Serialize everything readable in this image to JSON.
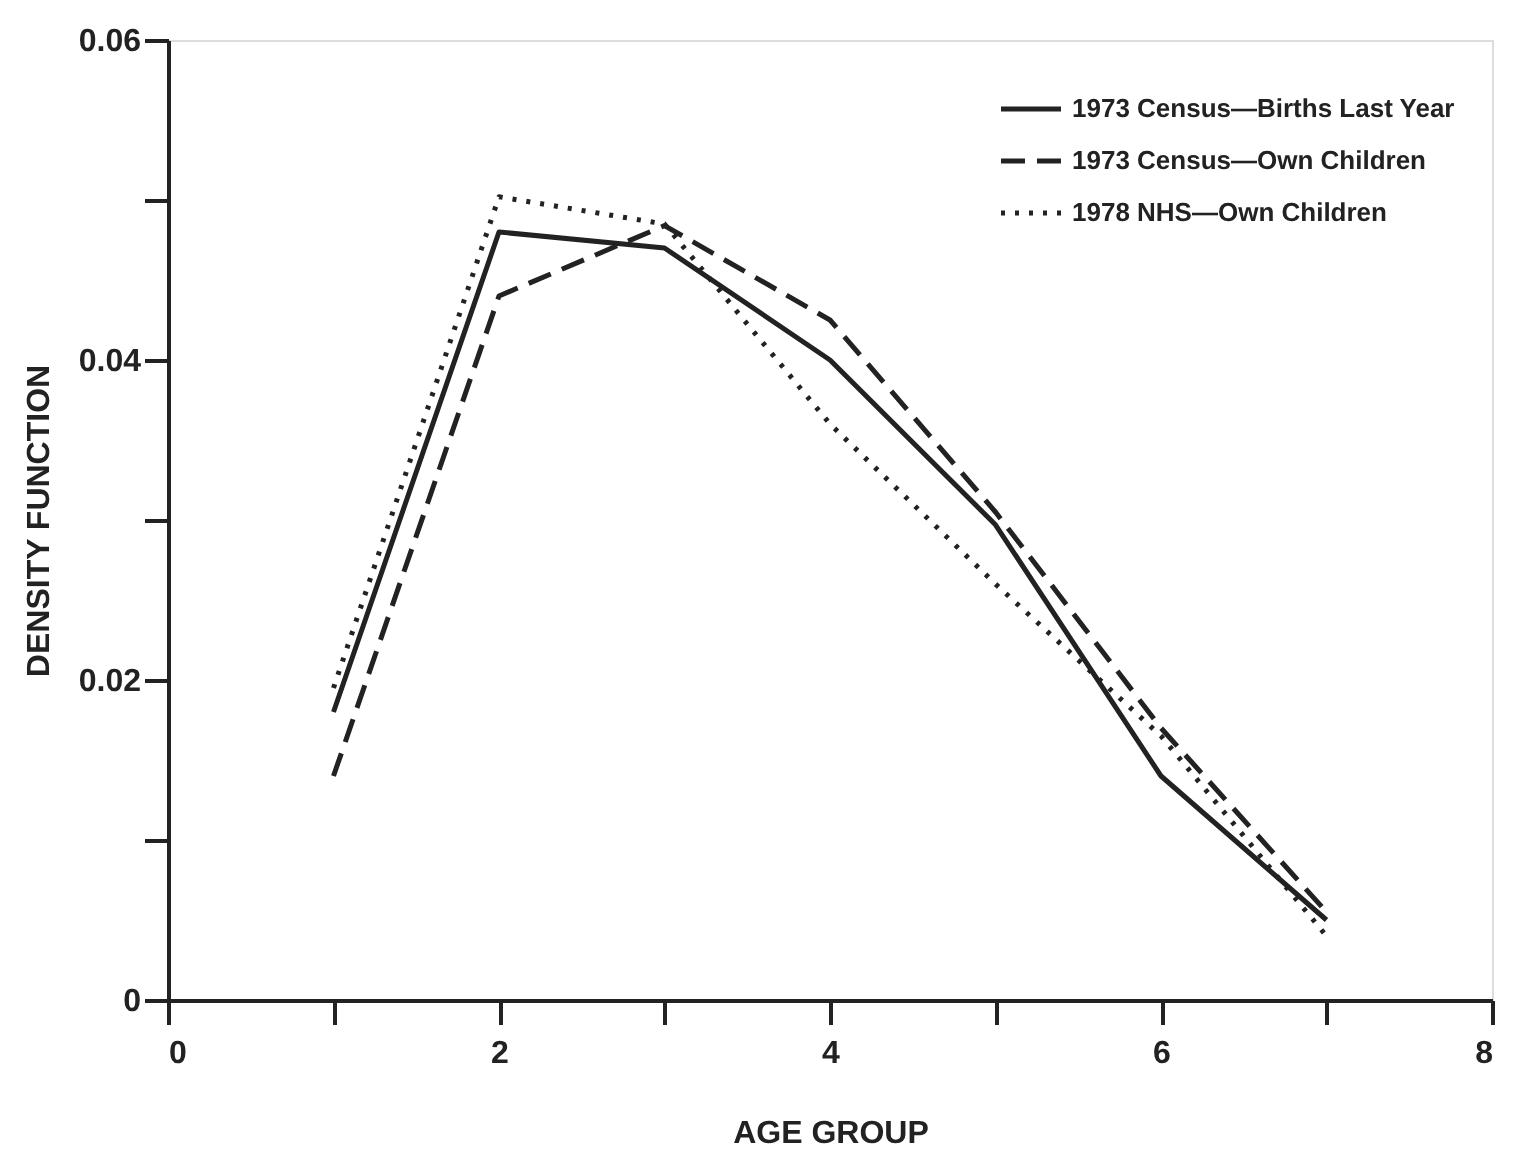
{
  "chart_data": {
    "type": "line",
    "xlabel": "AGE GROUP",
    "ylabel": "DENSITY FUNCTION",
    "x": [
      1,
      2,
      3,
      4,
      5,
      6,
      7
    ],
    "series": [
      {
        "name": "1973 Census—Births Last Year",
        "color": "#222222",
        "line_style": "solid",
        "values": [
          0.018,
          0.048,
          0.047,
          0.04,
          0.0297,
          0.014,
          0.005
        ]
      },
      {
        "name": "1973 Census—Own Children",
        "color": "#222222",
        "line_style": "dashed",
        "values": [
          0.014,
          0.044,
          0.0484,
          0.0425,
          0.0305,
          0.017,
          0.0055
        ]
      },
      {
        "name": "1978 NHS—Own Children",
        "color": "#222222",
        "line_style": "dotted",
        "values": [
          0.0195,
          0.0502,
          0.0485,
          0.036,
          0.026,
          0.0165,
          0.004
        ]
      }
    ],
    "xlim": [
      0,
      8
    ],
    "xticks": [
      0,
      {
        "value": 1,
        "label": null
      },
      2,
      {
        "value": 3,
        "label": null
      },
      4,
      {
        "value": 5,
        "label": null
      },
      6,
      {
        "value": 7,
        "label": null
      },
      8
    ],
    "ylim": [
      0,
      0.06
    ],
    "yticks": [
      0,
      {
        "value": 0.01,
        "label": null
      },
      0.02,
      {
        "value": 0.03,
        "label": null
      },
      0.04,
      {
        "value": 0.05,
        "label": null
      },
      0.06
    ],
    "grid": false,
    "legend": "top right",
    "marker": "none"
  }
}
